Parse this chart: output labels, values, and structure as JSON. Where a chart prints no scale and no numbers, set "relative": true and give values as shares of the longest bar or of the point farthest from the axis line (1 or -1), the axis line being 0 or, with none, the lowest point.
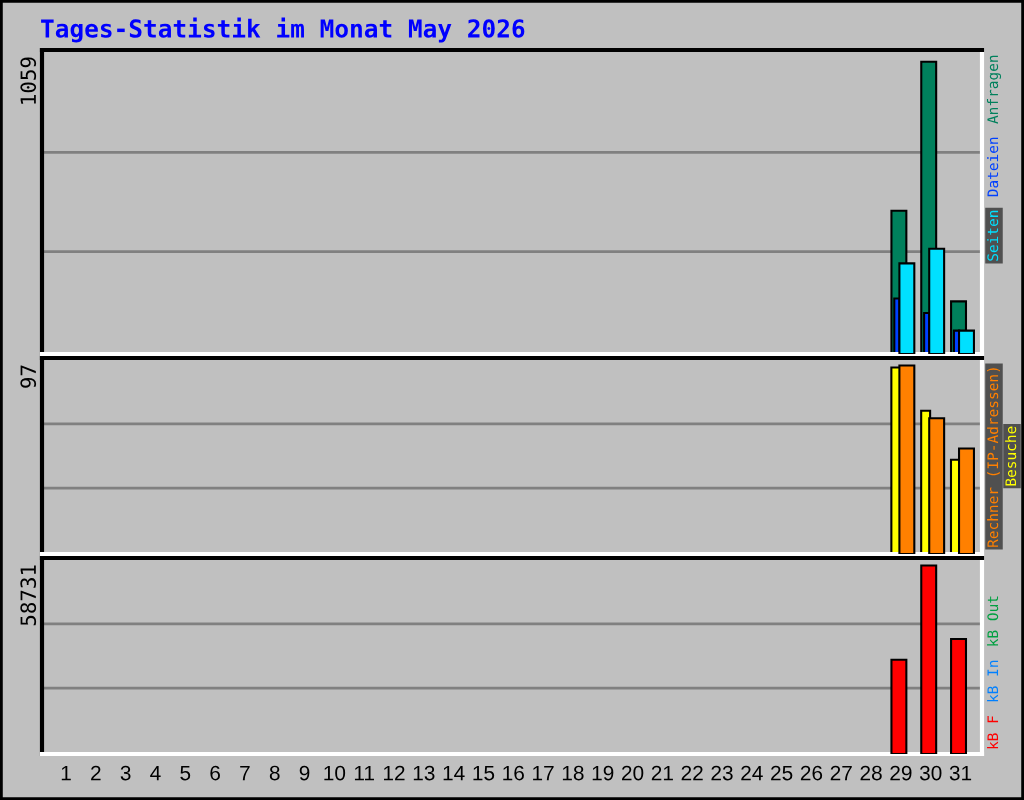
{
  "chart_data": [
    {
      "type": "bar",
      "title": "Tages-Statistik im Monat May 2026",
      "annotations": [
        "1059"
      ],
      "relative": true,
      "legend": "top right",
      "tick_labels": false,
      "categories": [
        "1",
        "2",
        "3",
        "4",
        "5",
        "6",
        "7",
        "8",
        "9",
        "10",
        "11",
        "12",
        "13",
        "14",
        "15",
        "16",
        "17",
        "18",
        "19",
        "20",
        "21",
        "22",
        "23",
        "24",
        "25",
        "26",
        "27",
        "28",
        "29",
        "30",
        "31"
      ],
      "ref_lines": [
        {
          "axis": "y",
          "value": 0.35,
          "color": "#808080"
        },
        {
          "axis": "y",
          "value": 0.69,
          "color": "#808080"
        }
      ],
      "series": [
        {
          "name": "Seiten",
          "color": "#00e0ff",
          "values": [
            null,
            null,
            null,
            null,
            null,
            null,
            null,
            null,
            null,
            null,
            null,
            null,
            null,
            null,
            null,
            null,
            null,
            null,
            null,
            null,
            null,
            null,
            null,
            null,
            null,
            null,
            null,
            null,
            0.31,
            0.36,
            0.08
          ]
        },
        {
          "name": "Dateien",
          "color": "#0040ff",
          "values": [
            null,
            null,
            null,
            null,
            null,
            null,
            null,
            null,
            null,
            null,
            null,
            null,
            null,
            null,
            null,
            null,
            null,
            null,
            null,
            null,
            null,
            null,
            null,
            null,
            null,
            null,
            null,
            null,
            0.19,
            0.14,
            0.08
          ]
        },
        {
          "name": "Anfragen",
          "color": "#00805c",
          "values": [
            null,
            null,
            null,
            null,
            null,
            null,
            null,
            null,
            null,
            null,
            null,
            null,
            null,
            null,
            null,
            null,
            null,
            null,
            null,
            null,
            null,
            null,
            null,
            null,
            null,
            null,
            null,
            null,
            0.49,
            1,
            0.18
          ]
        }
      ]
    },
    {
      "type": "bar",
      "annotations": [
        "97"
      ],
      "relative": true,
      "legend": "right",
      "tick_labels": false,
      "categories": [
        "1",
        "2",
        "3",
        "4",
        "5",
        "6",
        "7",
        "8",
        "9",
        "10",
        "11",
        "12",
        "13",
        "14",
        "15",
        "16",
        "17",
        "18",
        "19",
        "20",
        "21",
        "22",
        "23",
        "24",
        "25",
        "26",
        "27",
        "28",
        "29",
        "30",
        "31"
      ],
      "ref_lines": [
        {
          "axis": "y",
          "value": 0.35,
          "color": "#808080"
        },
        {
          "axis": "y",
          "value": 0.69,
          "color": "#808080"
        }
      ],
      "series": [
        {
          "name": "Rechner (IP-Adressen)",
          "color": "#ff8000",
          "values": [
            null,
            null,
            null,
            null,
            null,
            null,
            null,
            null,
            null,
            null,
            null,
            null,
            null,
            null,
            null,
            null,
            null,
            null,
            null,
            null,
            null,
            null,
            null,
            null,
            null,
            null,
            null,
            null,
            1,
            0.72,
            0.56
          ]
        },
        {
          "name": "Besuche",
          "color": "#ffff00",
          "values": [
            null,
            null,
            null,
            null,
            null,
            null,
            null,
            null,
            null,
            null,
            null,
            null,
            null,
            null,
            null,
            null,
            null,
            null,
            null,
            null,
            null,
            null,
            null,
            null,
            null,
            null,
            null,
            null,
            0.99,
            0.76,
            0.5
          ]
        }
      ]
    },
    {
      "type": "bar",
      "annotations": [
        "58731"
      ],
      "relative": true,
      "legend": "bottom right",
      "tick_labels": "x",
      "categories": [
        "1",
        "2",
        "3",
        "4",
        "5",
        "6",
        "7",
        "8",
        "9",
        "10",
        "11",
        "12",
        "13",
        "14",
        "15",
        "16",
        "17",
        "18",
        "19",
        "20",
        "21",
        "22",
        "23",
        "24",
        "25",
        "26",
        "27",
        "28",
        "29",
        "30",
        "31"
      ],
      "ref_lines": [
        {
          "axis": "y",
          "value": 0.35,
          "color": "#808080"
        },
        {
          "axis": "y",
          "value": 0.69,
          "color": "#808080"
        }
      ],
      "series": [
        {
          "name": "kB F",
          "color": "#ff0000",
          "values": [
            null,
            null,
            null,
            null,
            null,
            null,
            null,
            null,
            null,
            null,
            null,
            null,
            null,
            null,
            null,
            null,
            null,
            null,
            null,
            null,
            null,
            null,
            null,
            null,
            null,
            null,
            null,
            null,
            0.5,
            1,
            0.61
          ]
        },
        {
          "name": "kB In",
          "color": "#0080ff",
          "values": [
            null,
            null,
            null,
            null,
            null,
            null,
            null,
            null,
            null,
            null,
            null,
            null,
            null,
            null,
            null,
            null,
            null,
            null,
            null,
            null,
            null,
            null,
            null,
            null,
            null,
            null,
            null,
            null,
            null,
            null,
            null
          ]
        },
        {
          "name": "kB Out",
          "color": "#00a040",
          "values": [
            null,
            null,
            null,
            null,
            null,
            null,
            null,
            null,
            null,
            null,
            null,
            null,
            null,
            null,
            null,
            null,
            null,
            null,
            null,
            null,
            null,
            null,
            null,
            null,
            null,
            null,
            null,
            null,
            null,
            null,
            null
          ]
        }
      ]
    }
  ]
}
